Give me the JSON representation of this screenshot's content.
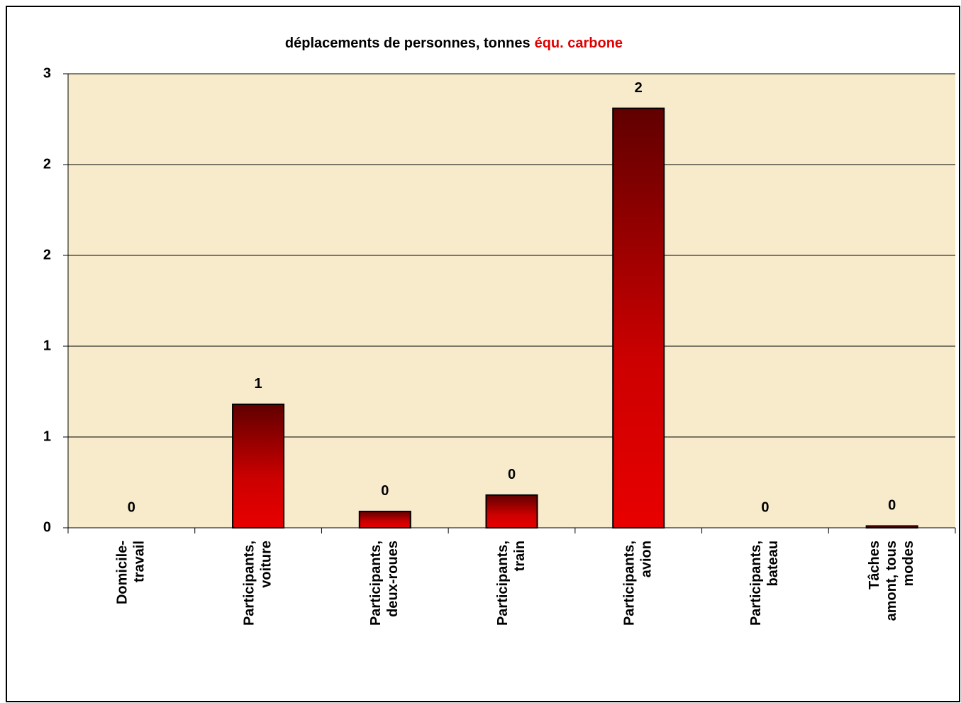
{
  "chart_data": {
    "type": "bar",
    "title": [
      "déplacements de personnes, tonnes",
      "équ. carbone"
    ],
    "title_colors": [
      "#000000",
      "#e00000"
    ],
    "categories": [
      [
        "Domicile-",
        "travail"
      ],
      [
        "Participants,",
        "voiture"
      ],
      [
        "Participants,",
        "deux-roues"
      ],
      [
        "Participants,",
        "train"
      ],
      [
        "Participants,",
        "avion"
      ],
      [
        "Participants,",
        "bateau"
      ],
      [
        "Tâches",
        "amont, tous",
        "modes"
      ]
    ],
    "values": [
      0,
      0.68,
      0.09,
      0.18,
      2.31,
      0,
      0.01
    ],
    "value_labels": [
      "0",
      "1",
      "0",
      "0",
      "2",
      "0",
      "0"
    ],
    "color": "#cc0000",
    "ylim": [
      0,
      2.5
    ],
    "yticks": [
      0,
      {
        "value": 0.5,
        "label": "1"
      },
      1,
      {
        "value": 1.5,
        "label": "2"
      },
      2,
      {
        "value": 2.5,
        "label": "3"
      }
    ],
    "grid": true
  }
}
